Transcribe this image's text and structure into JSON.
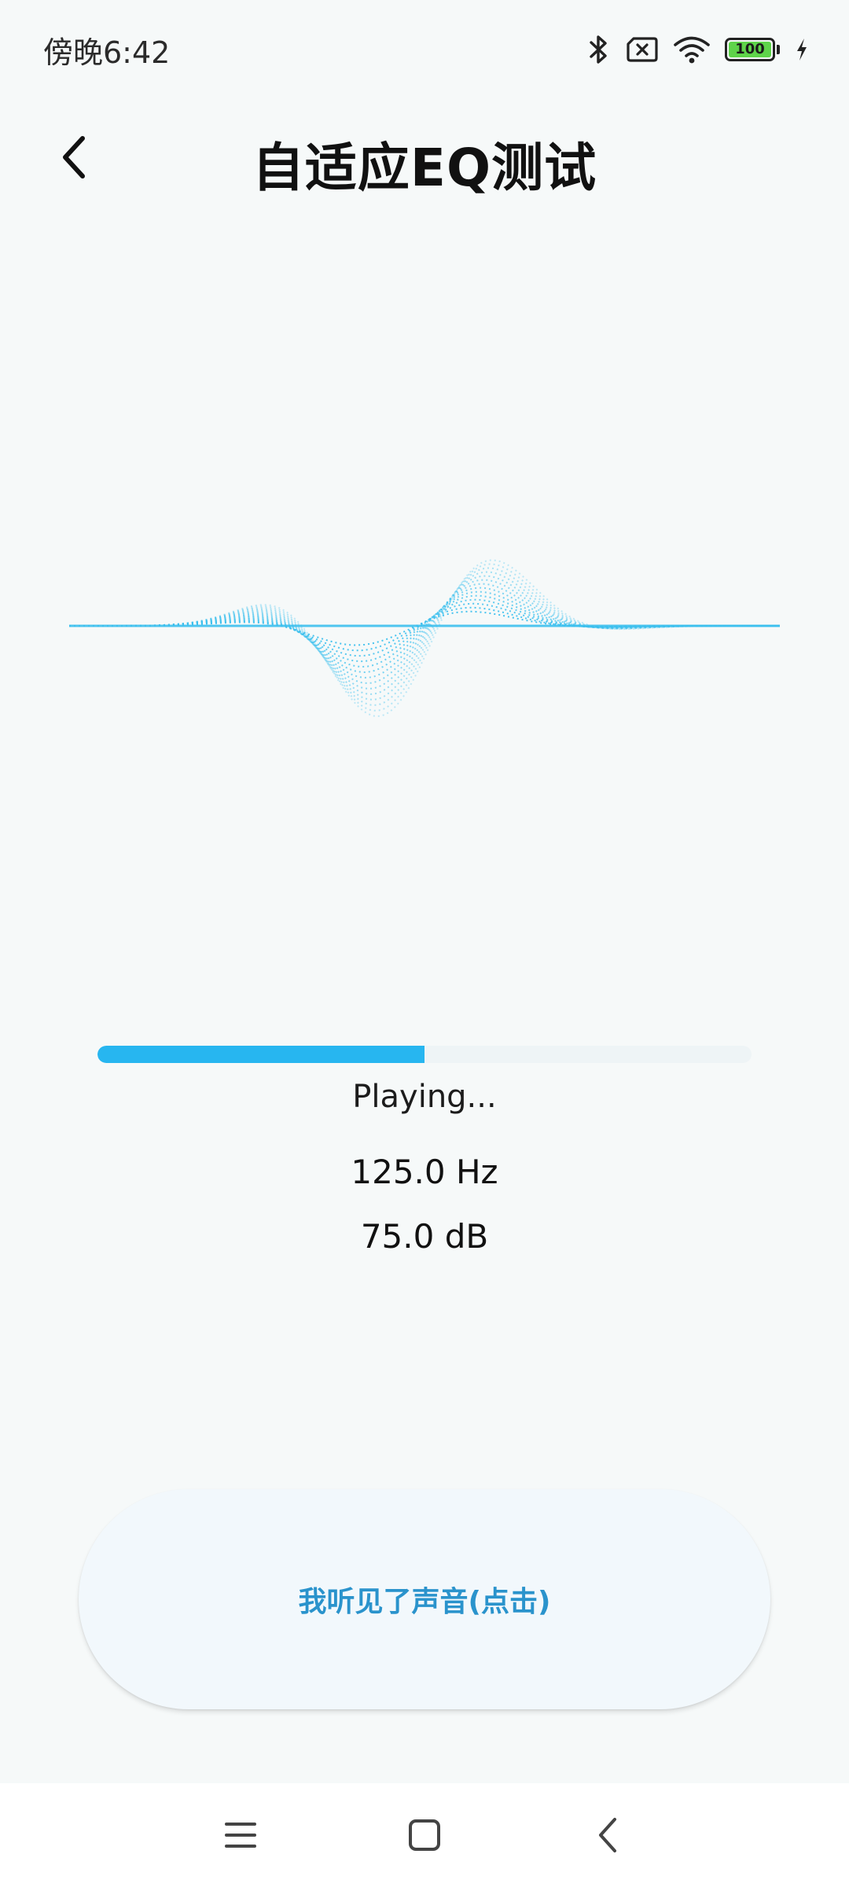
{
  "status_bar": {
    "time": "傍晚6:42",
    "battery_level": "100",
    "icons": [
      "bluetooth-icon",
      "no-sim-icon",
      "wifi-icon",
      "battery-icon",
      "charging-icon"
    ]
  },
  "header": {
    "title": "自适应EQ测试",
    "back_icon": "chevron-left-icon"
  },
  "test": {
    "progress": 0.5,
    "status": "Playing...",
    "frequency": "125.0 Hz",
    "level": "75.0 dB"
  },
  "heard_button": {
    "label": "我听见了声音(点击)"
  },
  "nav_bar": {
    "items": [
      "menu-icon",
      "home-icon",
      "back-icon"
    ]
  },
  "colors": {
    "accent": "#27b6f0",
    "wave": "#3cc0ee",
    "button_text": "#2a93cc",
    "battery": "#5ed34a"
  }
}
